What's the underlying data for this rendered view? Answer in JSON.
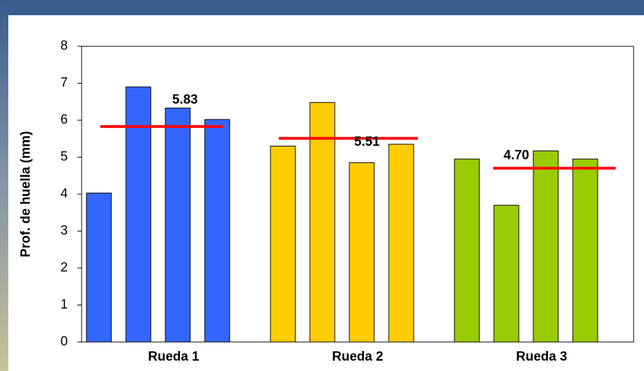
{
  "chart_data": {
    "type": "grouped_bar",
    "ylabel": "Prof. de huella (mm)",
    "categories": [
      "Rueda 1",
      "Rueda 2",
      "Rueda 3"
    ],
    "values": [
      [
        4.03,
        6.9,
        6.33,
        6.02
      ],
      [
        5.3,
        6.48,
        4.85,
        5.35
      ],
      [
        4.95,
        3.7,
        5.17,
        4.95
      ]
    ],
    "colors": [
      "#3366ff",
      "#ffcc00",
      "#99cc00"
    ],
    "means": [
      5.83,
      5.51,
      4.7
    ],
    "mean_labels": [
      "5.83",
      "5.51",
      "4.70"
    ],
    "mean_color": "#ff0000",
    "ylim": [
      0,
      8
    ],
    "yticks": [
      0,
      1,
      2,
      3,
      4,
      5,
      6,
      7,
      8
    ]
  }
}
